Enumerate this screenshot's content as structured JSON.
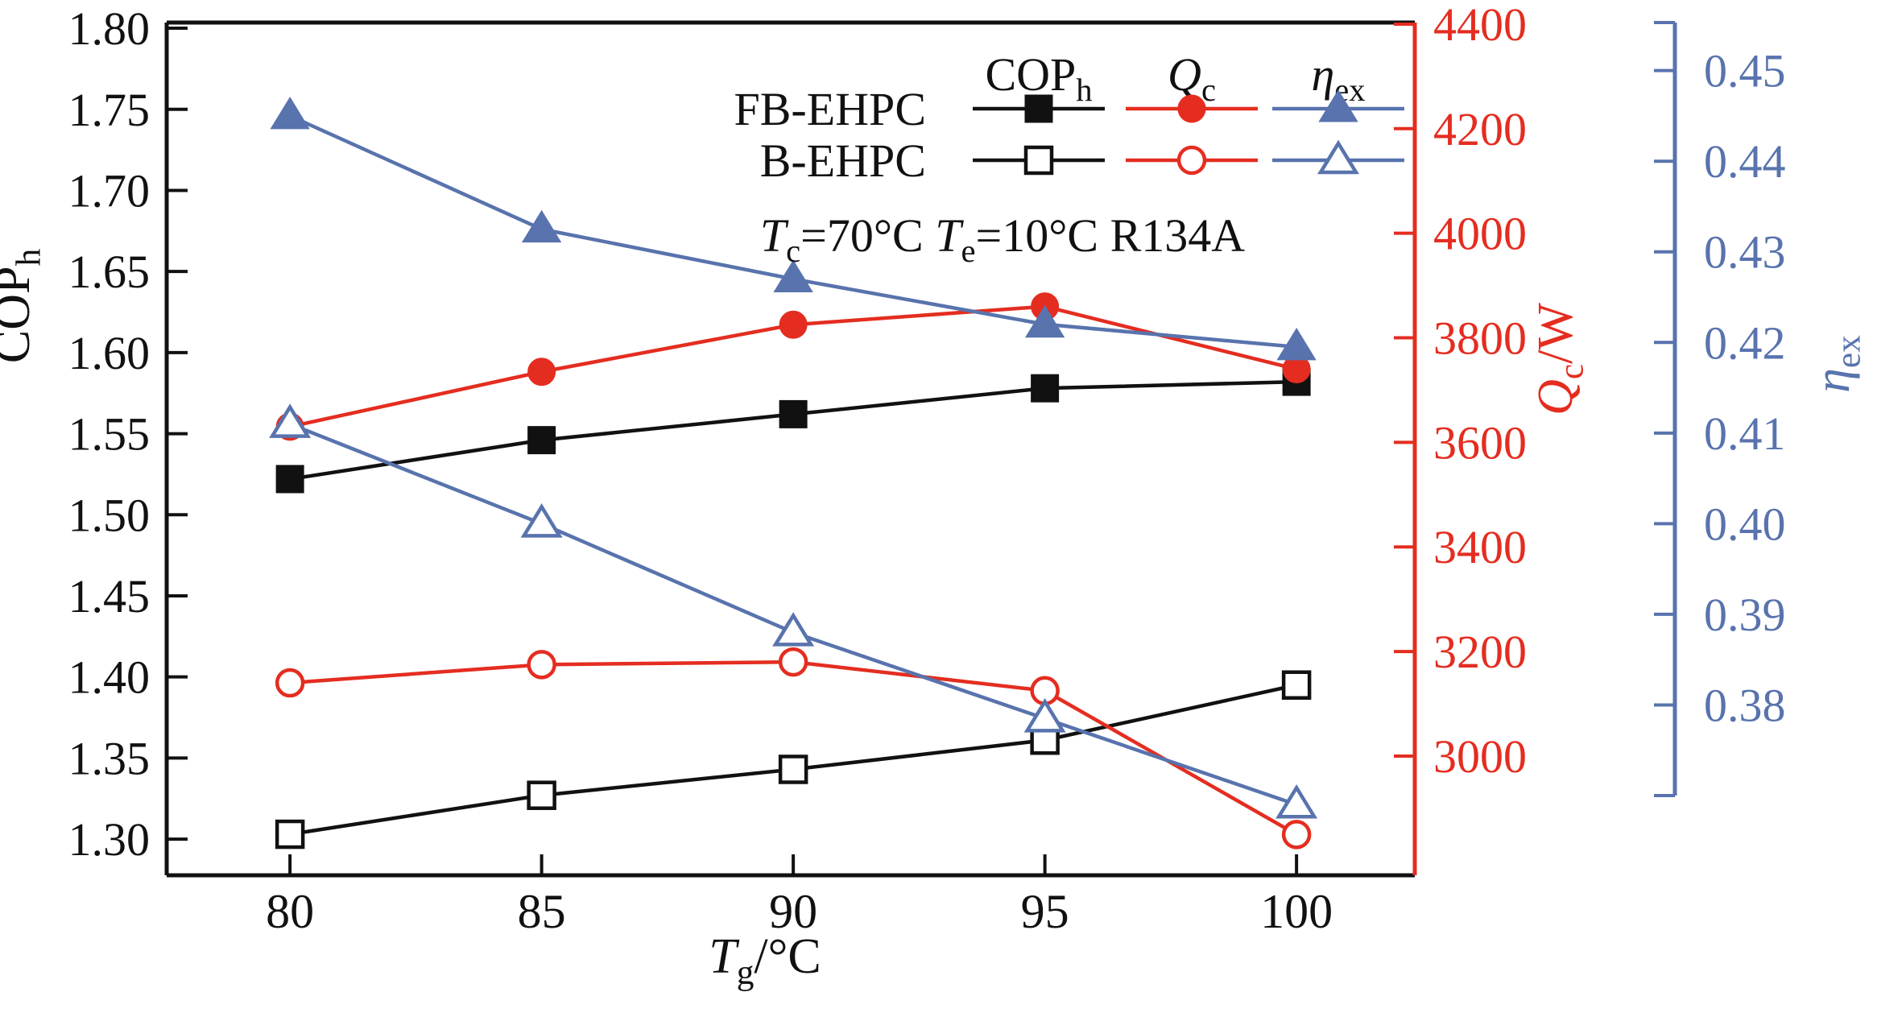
{
  "figure": {
    "background": "#ffffff",
    "annotation_text": "Tc=70°C Te=10°C R134A"
  },
  "chart_data": {
    "type": "line",
    "title": "",
    "x": [
      80,
      85,
      90,
      95,
      100
    ],
    "x_ticks": [
      80,
      85,
      90,
      95,
      100
    ],
    "xlabel": "Tg/°C",
    "xlabel_segments": [
      {
        "text": "T",
        "italic": true
      },
      {
        "text": "g",
        "sub": true
      },
      {
        "text": "/°C"
      }
    ],
    "colors": {
      "black": "#111111",
      "red": "#e42d20",
      "blue": "#5873ad"
    },
    "axes": {
      "left": {
        "label": "COPh",
        "label_segments": [
          {
            "text": "COP"
          },
          {
            "text": "h",
            "sub": true
          }
        ],
        "ticks": [
          1.8,
          1.75,
          1.7,
          1.65,
          1.6,
          1.55,
          1.5,
          1.45,
          1.4,
          1.35,
          1.3
        ],
        "decimals": 2,
        "color": "#111111",
        "ylim": [
          1.2777,
          1.8035
        ]
      },
      "qc": {
        "label": "Qc/W",
        "label_segments": [
          {
            "text": "Q",
            "italic": true
          },
          {
            "text": "c",
            "sub": true
          },
          {
            "text": "/W"
          }
        ],
        "ticks": [
          4400,
          4200,
          4000,
          3800,
          3600,
          3400,
          3200,
          3000
        ],
        "decimals": 0,
        "color": "#e42d20",
        "ylim": [
          2772,
          4403
        ]
      },
      "eta": {
        "label": "ηex",
        "label_segments": [
          {
            "text": "η",
            "italic": true
          },
          {
            "text": "ex",
            "sub": true
          }
        ],
        "ticks": [
          0.45,
          0.44,
          0.43,
          0.42,
          0.41,
          0.4,
          0.39,
          0.38
        ],
        "decimals": 2,
        "color": "#5873ad",
        "ylim": [
          0.37,
          0.4553
        ]
      }
    },
    "series": [
      {
        "group": "FB-EHPC",
        "quantity": "COPh",
        "axis": "left",
        "marker": "square",
        "filled": true,
        "color": "#111111",
        "values": [
          1.522,
          1.546,
          1.562,
          1.578,
          1.582
        ]
      },
      {
        "group": "B-EHPC",
        "quantity": "COPh",
        "axis": "left",
        "marker": "square",
        "filled": false,
        "color": "#111111",
        "values": [
          1.303,
          1.327,
          1.343,
          1.361,
          1.395
        ]
      },
      {
        "group": "FB-EHPC",
        "quantity": "Qc",
        "axis": "qc",
        "marker": "circle",
        "filled": true,
        "color": "#e42d20",
        "values": [
          3630,
          3735,
          3825,
          3860,
          3740
        ]
      },
      {
        "group": "B-EHPC",
        "quantity": "Qc",
        "axis": "qc",
        "marker": "circle",
        "filled": false,
        "color": "#e42d20",
        "values": [
          3140,
          3175,
          3180,
          3125,
          2850
        ]
      },
      {
        "group": "FB-EHPC",
        "quantity": "etaex",
        "axis": "eta",
        "marker": "triangle",
        "filled": true,
        "color": "#5873ad",
        "values": [
          0.445,
          0.4325,
          0.427,
          0.422,
          0.4195
        ]
      },
      {
        "group": "B-EHPC",
        "quantity": "etaex",
        "axis": "eta",
        "marker": "triangle",
        "filled": false,
        "color": "#5873ad",
        "values": [
          0.411,
          0.4,
          0.388,
          0.3785,
          0.369
        ]
      }
    ],
    "legend": {
      "position": "top-center-inside",
      "row_labels": [
        "FB-EHPC",
        "B-EHPC"
      ],
      "column_headers": [
        {
          "key": "COPh",
          "segments": [
            {
              "text": "COP"
            },
            {
              "text": "h",
              "sub": true
            }
          ],
          "color": "#111111"
        },
        {
          "key": "Qc",
          "segments": [
            {
              "text": "Q",
              "italic": true
            },
            {
              "text": "c",
              "sub": true
            }
          ],
          "color": "#111111"
        },
        {
          "key": "etaex",
          "segments": [
            {
              "text": "η",
              "italic": true
            },
            {
              "text": "ex",
              "sub": true
            }
          ],
          "color": "#111111"
        }
      ]
    },
    "annotation": {
      "text": "Tc=70°C Te=10°C R134A",
      "segments": [
        {
          "text": "T",
          "italic": true
        },
        {
          "text": "c",
          "sub": true
        },
        {
          "text": "=70°C "
        },
        {
          "text": "T",
          "italic": true
        },
        {
          "text": "e",
          "sub": true
        },
        {
          "text": "=10°C R134A"
        }
      ]
    },
    "grid": false
  }
}
